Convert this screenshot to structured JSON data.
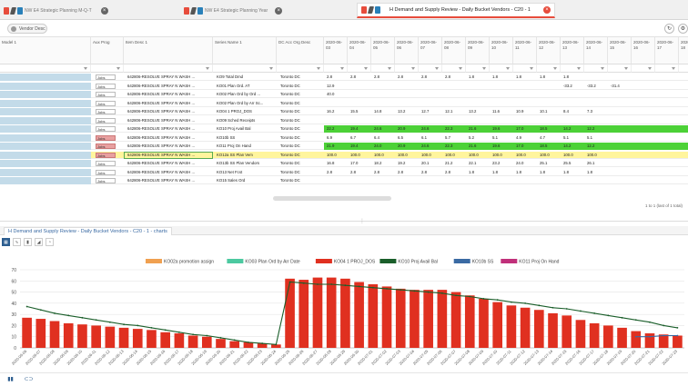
{
  "tabs": [
    {
      "label": "NW E4 Strategic Planning M-Q-T",
      "status": "",
      "active": false
    },
    {
      "label": "NW E4 Strategic Planning Year",
      "status": "",
      "active": false
    },
    {
      "label": "H Demand and Supply Review - Daily Bucket Vendors - C20 - 1",
      "status": "",
      "active": true
    }
  ],
  "toolbar": {
    "filter_chip": "Vendor Desc"
  },
  "grid": {
    "headers": {
      "model": "Model 1",
      "aux": "Aux Prog",
      "item_desc": "Item Desc 1",
      "series_name": "Series Name 1",
      "dc": "DC Acc Org Desc",
      "dates": [
        "2020-06-03",
        "2020-06-04",
        "2020-06-05",
        "2020-06-06",
        "2020-06-07",
        "2020-06-08",
        "2020-06-09",
        "2020-06-10",
        "2020-06-11",
        "2020-06-12",
        "2020-06-13",
        "2020-06-14",
        "2020-06-15",
        "2020-06-16",
        "2020-06-17",
        "2020-06-18"
      ]
    },
    "rows": [
      {
        "aux": "Jobs",
        "item": "642806-RESOLVE SPRAY N WASH ...",
        "series": "KO9 Total Dmd",
        "dc": "Toronto DC",
        "vals": [
          "2.8",
          "2.8",
          "2.8",
          "2.8",
          "2.8",
          "2.8",
          "1.8",
          "1.8",
          "1.8",
          "1.8",
          "1.8"
        ],
        "hl": ""
      },
      {
        "aux": "Jobs",
        "item": "642806-RESOLVE SPRAY N WASH ...",
        "series": "KO01 Plan Ord. AT",
        "dc": "Toronto DC",
        "vals": [
          "12.9",
          "",
          "",
          "",
          "",
          "",
          "",
          "",
          "",
          "",
          "-33.2",
          "-33.2",
          "-31.4"
        ],
        "hl": ""
      },
      {
        "aux": "Jobs",
        "item": "642806-RESOLVE SPRAY N WASH ...",
        "series": "KO02 Plan Ord by Ord ...",
        "dc": "Toronto DC",
        "vals": [
          "40.0"
        ],
        "hl": ""
      },
      {
        "aux": "Jobs",
        "item": "642806-RESOLVE SPRAY N WASH ...",
        "series": "KO02 Plan Ord by Arr Sc...",
        "dc": "Toronto DC",
        "vals": [],
        "hl": ""
      },
      {
        "aux": "Jobs",
        "item": "642806-RESOLVE SPRAY N WASH ...",
        "series": "KO04 1 PROJ_DOS",
        "dc": "Toronto DC",
        "vals": [
          "16.2",
          "15.5",
          "14.8",
          "13.2",
          "12.7",
          "12.1",
          "13.2",
          "11.6",
          "10.9",
          "10.1",
          "8.4",
          "7.3"
        ],
        "hl": ""
      },
      {
        "aux": "Jobs",
        "item": "642806-RESOLVE SPRAY N WASH ...",
        "series": "KO09 Sched Receipts",
        "dc": "Toronto DC",
        "vals": [],
        "hl": ""
      },
      {
        "aux": "Jobs",
        "item": "642806-RESOLVE SPRAY N WASH ...",
        "series": "KO10 Proj Avail Bal",
        "dc": "Toronto DC",
        "vals": [
          "22.2",
          "19.4",
          "24.6",
          "20.9",
          "24.6",
          "22.3",
          "21.6",
          "19.6",
          "17.0",
          "18.5",
          "14.2",
          "12.2"
        ],
        "hl": "green"
      },
      {
        "aux": "Jobs",
        "item": "642806-RESOLVE SPRAY N WASH ...",
        "series": "KO10b SS",
        "dc": "Toronto DC",
        "vals": [
          "6.9",
          "6.7",
          "6.4",
          "6.5",
          "6.1",
          "5.7",
          "5.2",
          "5.1",
          "4.9",
          "4.7",
          "5.1",
          "5.1"
        ],
        "hl": ""
      },
      {
        "aux": "Jobs",
        "item": "642806-RESOLVE SPRAY N WASH ...",
        "series": "KO11 Proj On Hand",
        "dc": "Toronto DC",
        "vals": [
          "21.9",
          "19.4",
          "24.0",
          "20.9",
          "24.6",
          "22.3",
          "21.6",
          "19.6",
          "17.0",
          "18.5",
          "14.2",
          "12.2"
        ],
        "hl": "green"
      },
      {
        "aux": "Jobs",
        "item": "642806-RESOLVE SPRAY N WASH ...",
        "series": "KO12a SS Plan Vem",
        "dc": "Toronto DC",
        "vals": [
          "100.0",
          "100.0",
          "100.0",
          "100.0",
          "100.0",
          "100.0",
          "100.0",
          "100.0",
          "100.0",
          "100.0",
          "100.0",
          "100.0"
        ],
        "hl": "yellow"
      },
      {
        "aux": "Jobs",
        "item": "642806-RESOLVE SPRAY N WASH ...",
        "series": "KO13b SS Plan Vendors",
        "dc": "Toronto DC",
        "vals": [
          "16.8",
          "17.0",
          "18.2",
          "19.2",
          "20.1",
          "21.2",
          "22.1",
          "23.2",
          "24.0",
          "25.1",
          "25.5",
          "26.1"
        ],
        "hl": ""
      },
      {
        "aux": "Jobs",
        "item": "642806-RESOLVE SPRAY N WASH ...",
        "series": "KO13 Net Fcst",
        "dc": "Toronto DC",
        "vals": [
          "2.8",
          "2.8",
          "2.8",
          "2.8",
          "2.8",
          "2.8",
          "1.8",
          "1.8",
          "1.8",
          "1.8",
          "1.8",
          "1.8"
        ],
        "hl": ""
      },
      {
        "aux": "Jobs",
        "item": "642806-RESOLVE SPRAY N WASH ...",
        "series": "KO15 Sales Ord",
        "dc": "Toronto DC",
        "vals": [],
        "hl": ""
      }
    ],
    "pager": "1 to 1 (last of 1 total)"
  },
  "panel": {
    "title": "H Demand and Supply Review - Daily Bucket Vendors - C20 - 1 - charts"
  },
  "chart_data": {
    "type": "bar",
    "title": "",
    "xlabel": "",
    "ylabel": "",
    "ylim": [
      0,
      70
    ],
    "yticks": [
      0,
      10,
      20,
      30,
      40,
      50,
      60,
      70
    ],
    "legend": [
      {
        "name": "KO02a promotion assign",
        "color": "#f0a050"
      },
      {
        "name": "KO03 Plan Ord by Arr Date",
        "color": "#4cc9a0"
      },
      {
        "name": "KO04 1 PROJ_DOS",
        "color": "#e03020"
      },
      {
        "name": "KO10 Proj Avail Bal",
        "color": "#1a5e2a"
      },
      {
        "name": "KO10b SS",
        "color": "#3a6aa3"
      },
      {
        "name": "KO11 Proj On Hand",
        "color": "#c0307a"
      }
    ],
    "categories": [
      "2020-06-06",
      "2020-06-07",
      "2020-06-08",
      "2020-06-09",
      "2020-06-10",
      "2020-06-11",
      "2020-06-12",
      "2020-06-13",
      "2020-06-14",
      "2020-06-15",
      "2020-06-16",
      "2020-06-17",
      "2020-06-18",
      "2020-06-19",
      "2020-06-20",
      "2020-06-21",
      "2020-06-22",
      "2020-06-23",
      "2020-06-24",
      "2020-06-25",
      "2020-06-26",
      "2020-06-27",
      "2020-06-28",
      "2020-06-29",
      "2020-06-30",
      "2020-07-01",
      "2020-07-02",
      "2020-07-03",
      "2020-07-04",
      "2020-07-05",
      "2020-07-06",
      "2020-07-07",
      "2020-07-08",
      "2020-07-09",
      "2020-07-10",
      "2020-07-11",
      "2020-07-12",
      "2020-07-13",
      "2020-07-14",
      "2020-07-15",
      "2020-07-16",
      "2020-07-17",
      "2020-07-18",
      "2020-07-19",
      "2020-07-20",
      "2020-07-21",
      "2020-07-22",
      "2020-07-23"
    ],
    "series": [
      {
        "name": "KO04 1 PROJ_DOS",
        "kind": "bar",
        "color": "#e03020",
        "values": [
          27,
          26,
          24,
          22,
          21,
          20,
          19,
          18,
          17,
          16,
          14,
          13,
          11,
          10,
          8,
          6,
          5,
          4,
          3,
          62,
          61,
          63,
          63,
          62,
          59,
          57,
          55,
          53,
          52,
          52,
          52,
          50,
          47,
          44,
          41,
          38,
          36,
          34,
          31,
          29,
          25,
          22,
          20,
          18,
          15,
          13,
          12,
          11
        ]
      },
      {
        "name": "KO10 Proj Avail Bal",
        "kind": "line",
        "color": "#1a5e2a",
        "values": [
          37,
          34,
          31,
          29,
          27,
          25,
          23,
          21,
          20,
          18,
          16,
          14,
          12,
          11,
          9,
          7,
          5,
          4,
          3,
          59,
          58,
          57,
          57,
          56,
          55,
          54,
          53,
          52,
          51,
          50,
          49,
          47,
          46,
          44,
          43,
          41,
          40,
          38,
          36,
          35,
          33,
          31,
          29,
          27,
          25,
          23,
          20,
          18
        ]
      },
      {
        "name": "KO10b SS",
        "kind": "line",
        "color": "#3a6aa3",
        "values": [
          null,
          null,
          null,
          null,
          null,
          null,
          null,
          null,
          null,
          null,
          null,
          null,
          null,
          null,
          null,
          null,
          null,
          null,
          null,
          null,
          null,
          null,
          null,
          null,
          null,
          null,
          null,
          null,
          null,
          null,
          null,
          null,
          null,
          null,
          null,
          null,
          null,
          null,
          null,
          null,
          null,
          null,
          null,
          null,
          10,
          10,
          11,
          11
        ]
      }
    ]
  }
}
